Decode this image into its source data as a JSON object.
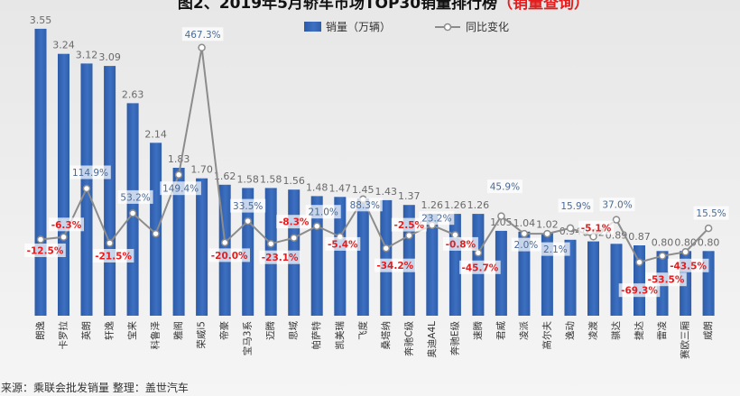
{
  "colors": {
    "bar": "#3566b4",
    "bar_light": "#5a8bd6",
    "line": "#8c8c8c",
    "negative_label": "#e41e1e",
    "positive_label": "#4a6a96",
    "title_highlight": "#e41e1e"
  },
  "source_note": "来源：乘联会批发销量   整理：盖世汽车",
  "chart_data": {
    "type": "bar",
    "title": "图2、2019年5月轿车市场TOP30销量排行榜",
    "title_highlight": "（销量查询）",
    "categories": [
      "朗逸",
      "卡罗拉",
      "英朗",
      "轩逸",
      "宝来",
      "科鲁泽",
      "雅阁",
      "荣威i5",
      "帝豪",
      "宝马3系",
      "迈腾",
      "思域",
      "帕萨特",
      "凯美瑞",
      "飞度",
      "桑塔纳",
      "奔驰C级",
      "奥迪A4L",
      "奔驰E级",
      "速腾",
      "君威",
      "凌派",
      "高尔夫",
      "逸动",
      "凌渡",
      "骐达",
      "捷达",
      "雷凌",
      "赛欧三厢",
      "威朗"
    ],
    "series": [
      {
        "name": "销量（万辆）",
        "type": "bar",
        "values": [
          3.55,
          3.24,
          3.12,
          3.09,
          2.63,
          2.14,
          1.83,
          1.7,
          1.62,
          1.58,
          1.58,
          1.56,
          1.48,
          1.47,
          1.45,
          1.43,
          1.37,
          1.26,
          1.26,
          1.26,
          1.05,
          1.04,
          1.02,
          0.94,
          0.92,
          0.89,
          0.87,
          0.8,
          0.8,
          0.8
        ],
        "value_labels": [
          "3.55",
          "3.24",
          "3.12",
          "3.09",
          "2.63",
          "2.14",
          "1.83",
          "1.70",
          "1.62",
          "1.58",
          "1.58",
          "1.56",
          "1.48",
          "1.47",
          "1.45",
          "1.43",
          "1.37",
          "1.26",
          "1.26",
          "1.26",
          "1.05",
          "1.04",
          "1.02",
          "0.94",
          "0.92",
          "0.89",
          "0.87",
          "0.80",
          "0.80",
          "0.80"
        ]
      },
      {
        "name": "同比变化",
        "type": "line",
        "axis": "secondary",
        "values": [
          -12.5,
          -6.3,
          114.9,
          -21.5,
          53.2,
          2.0,
          149.4,
          467.3,
          -20.0,
          33.5,
          -23.1,
          -8.3,
          21.0,
          -5.4,
          88.3,
          -34.2,
          -2.5,
          23.2,
          -0.8,
          -45.7,
          45.9,
          2.0,
          2.1,
          15.9,
          -5.1,
          37.0,
          -69.3,
          -53.5,
          -43.5,
          15.5
        ],
        "value_labels": [
          "-12.5%",
          "-6.3%",
          "114.9%",
          "-21.5%",
          "53.2%",
          "",
          "149.4%",
          "467.3%",
          "-20.0%",
          "33.5%",
          "-23.1%",
          "-8.3%",
          "21.0%",
          "-5.4%",
          "88.3%",
          "-34.2%",
          "-2.5%",
          "23.2%",
          "-0.8%",
          "-45.7%",
          "45.9%",
          "2.0%",
          "2.1%",
          "15.9%",
          "-5.1%",
          "37.0%",
          "-69.3%",
          "-53.5%",
          "-43.5%",
          "15.5%"
        ]
      }
    ],
    "legend": {
      "position": "top",
      "items": [
        "销量（万辆）",
        "同比变化"
      ]
    },
    "grid": false,
    "axes_visible": false
  }
}
